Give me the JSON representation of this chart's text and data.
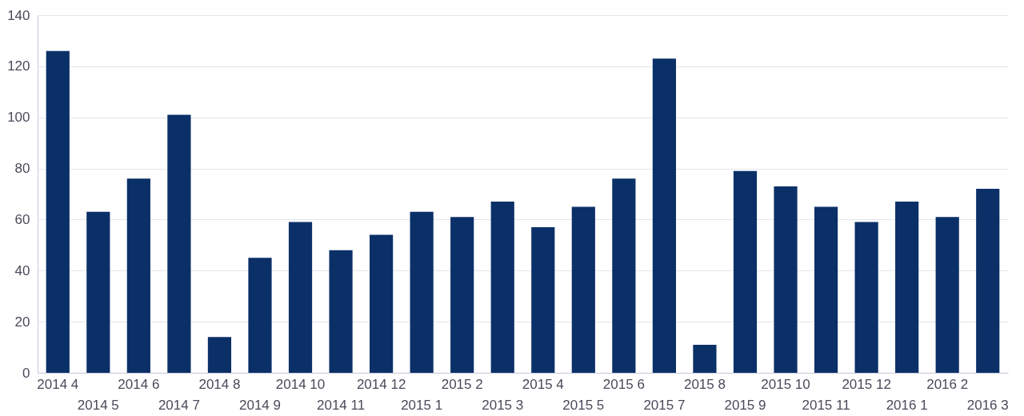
{
  "chart_data": {
    "type": "bar",
    "categories": [
      "2014 4",
      "2014 5",
      "2014 6",
      "2014 7",
      "2014 8",
      "2014 9",
      "2014 10",
      "2014 11",
      "2014 12",
      "2015 1",
      "2015 2",
      "2015 3",
      "2015 4",
      "2015 5",
      "2015 6",
      "2015 7",
      "2015 8",
      "2015 9",
      "2015 10",
      "2015 11",
      "2015 12",
      "2016 1",
      "2016 2",
      "2016 3"
    ],
    "values": [
      126,
      63,
      76,
      101,
      14,
      45,
      59,
      48,
      54,
      63,
      61,
      67,
      57,
      65,
      76,
      123,
      11,
      79,
      73,
      65,
      59,
      67,
      61,
      72
    ],
    "color": "#0b3068",
    "ylim": [
      0,
      140
    ],
    "yticks": [
      0,
      20,
      40,
      60,
      80,
      100,
      120,
      140
    ],
    "grid": "y"
  }
}
